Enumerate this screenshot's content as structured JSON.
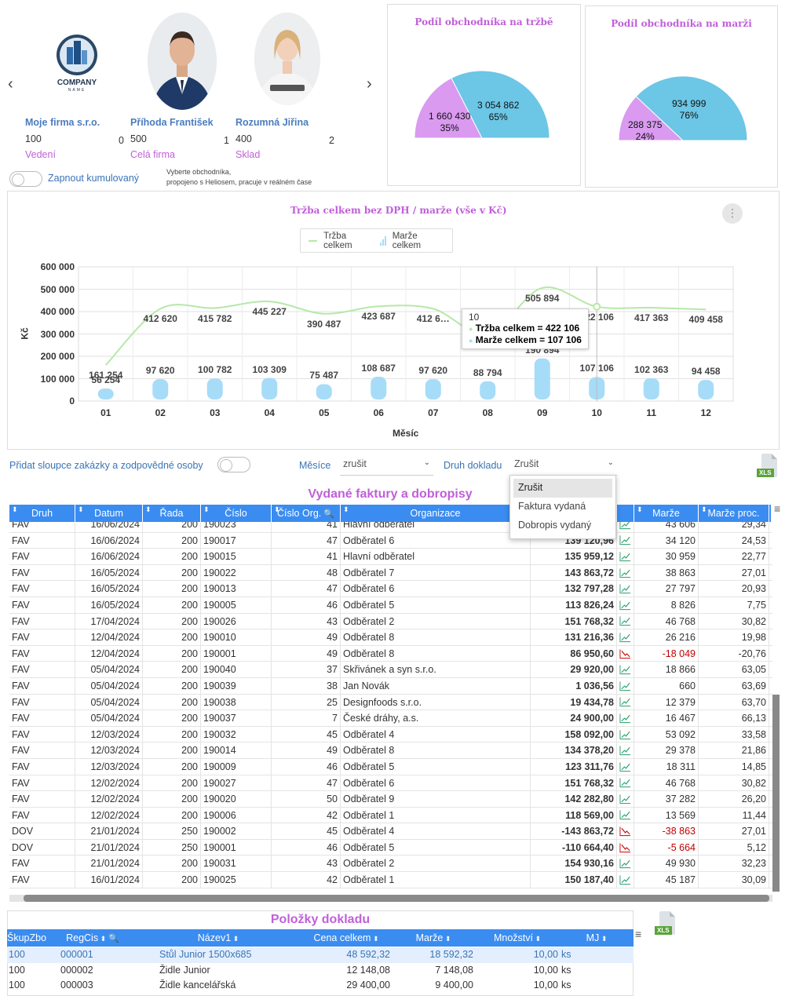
{
  "carousel": {
    "prev": "‹",
    "next": "›",
    "people": [
      {
        "name": "Moje firma s.r.o.",
        "number": "100",
        "count": "0",
        "dept": "Vedení",
        "logo_text": "COMPANY",
        "logo_sub": "NAME"
      },
      {
        "name": "Příhoda František",
        "number": "500",
        "count": "1",
        "dept": "Celá firma"
      },
      {
        "name": "Rozumná Jiřina",
        "number": "400",
        "count": "2",
        "dept": "Sklad"
      }
    ],
    "cumulative_label": "Zapnout kumulovaný",
    "hint_line1": "Vyberte obchodníka,",
    "hint_line2": "propojeno s Heliosem, pracuje v reálném čase"
  },
  "pies": [
    {
      "title": "Podíl obchodníka na tržbě",
      "slices": [
        {
          "value": "1 660 430",
          "pct": 35,
          "pct_label": "35%",
          "color": "#d99af0"
        },
        {
          "value": "3 054 862",
          "pct": 65,
          "pct_label": "65%",
          "color": "#6cc6e6"
        }
      ]
    },
    {
      "title": "Podíl obchodníka na marži",
      "slices": [
        {
          "value": "288 375",
          "pct": 24,
          "pct_label": "24%",
          "color": "#d99af0"
        },
        {
          "value": "934 999",
          "pct": 76,
          "pct_label": "76%",
          "color": "#6cc6e6"
        }
      ]
    }
  ],
  "chart_data": {
    "type": "line",
    "title": "Tržba celkem bez DPH / marže (vše v Kč)",
    "xlabel": "Měsíc",
    "ylabel": "Kč",
    "ylim": [
      0,
      600000
    ],
    "yticks": [
      "0",
      "100 000",
      "200 000",
      "300 000",
      "400 000",
      "500 000",
      "600 000"
    ],
    "categories": [
      "01",
      "02",
      "03",
      "04",
      "05",
      "06",
      "07",
      "08",
      "09",
      "10",
      "11",
      "12"
    ],
    "series": [
      {
        "name": "Tržba celkem",
        "kind": "line",
        "color": "#b6e8a8",
        "values": [
          161254,
          412620,
          415782,
          445227,
          390487,
          423687,
          412620,
          298794,
          505894,
          422106,
          417363,
          409458
        ],
        "labels": [
          "161 254",
          "412 620",
          "415 782",
          "445 227",
          "390 487",
          "423 687",
          "412 6…",
          "298 794",
          "505 894",
          "422 106",
          "417 363",
          "409 458"
        ]
      },
      {
        "name": "Marže celkem",
        "kind": "bar",
        "color": "#a6dcf8",
        "values": [
          56254,
          97620,
          100782,
          103309,
          75487,
          108687,
          97620,
          88794,
          190894,
          107106,
          102363,
          94458
        ],
        "labels": [
          "56 254",
          "97 620",
          "100 782",
          "103 309",
          "75 487",
          "108 687",
          "97 620",
          "88 794",
          "190 894",
          "107 106",
          "102 363",
          "94 458"
        ]
      }
    ],
    "legend": "top-center",
    "tooltip": {
      "header": "10",
      "line1": "Tržba celkem = 422 106",
      "line2": "Marže celkem = 107 106"
    }
  },
  "filters": {
    "add_columns_label": "Přidat sloupce zakázky a zodpovědné osoby",
    "months_label": "Měsíce",
    "months_value": "zrušit",
    "doctype_label": "Druh dokladu",
    "doctype_value": "Zrušit",
    "doctype_options": [
      "Zrušit",
      "Faktura vydaná",
      "Dobropis vydaný"
    ],
    "xls": "XLS"
  },
  "invoices": {
    "title": "Vydané faktury a dobropisy",
    "columns": [
      "Druh",
      "Datum",
      "Řada",
      "Číslo",
      "Číslo Org.",
      "Organizace",
      "",
      "",
      "Marže",
      "Marže proc."
    ],
    "rows": [
      [
        "FAV",
        "16/06/2024",
        "200",
        "190023",
        "41",
        "Hlavní odběratel",
        "",
        "up",
        "43 606",
        "29,34"
      ],
      [
        "FAV",
        "16/06/2024",
        "200",
        "190017",
        "47",
        "Odběratel 6",
        "139 120,96",
        "up",
        "34 120",
        "24,53"
      ],
      [
        "FAV",
        "16/06/2024",
        "200",
        "190015",
        "41",
        "Hlavní odběratel",
        "135 959,12",
        "up",
        "30 959",
        "22,77"
      ],
      [
        "FAV",
        "16/05/2024",
        "200",
        "190022",
        "48",
        "Odběratel 7",
        "143 863,72",
        "up",
        "38 863",
        "27,01"
      ],
      [
        "FAV",
        "16/05/2024",
        "200",
        "190013",
        "47",
        "Odběratel 6",
        "132 797,28",
        "up",
        "27 797",
        "20,93"
      ],
      [
        "FAV",
        "16/05/2024",
        "200",
        "190005",
        "46",
        "Odběratel 5",
        "113 826,24",
        "up",
        "8 826",
        "7,75"
      ],
      [
        "FAV",
        "17/04/2024",
        "200",
        "190026",
        "43",
        "Odběratel 2",
        "151 768,32",
        "up",
        "46 768",
        "30,82"
      ],
      [
        "FAV",
        "12/04/2024",
        "200",
        "190010",
        "49",
        "Odběratel 8",
        "131 216,36",
        "up",
        "26 216",
        "19,98"
      ],
      [
        "FAV",
        "12/04/2024",
        "200",
        "190001",
        "49",
        "Odběratel 8",
        "86 950,60",
        "down",
        "-18 049",
        "-20,76"
      ],
      [
        "FAV",
        "05/04/2024",
        "200",
        "190040",
        "37",
        "Skřivánek a syn s.r.o.",
        "29 920,00",
        "up",
        "18 866",
        "63,05"
      ],
      [
        "FAV",
        "05/04/2024",
        "200",
        "190039",
        "38",
        "Jan Novák",
        "1 036,56",
        "up",
        "660",
        "63,69"
      ],
      [
        "FAV",
        "05/04/2024",
        "200",
        "190038",
        "25",
        "Designfoods s.r.o.",
        "19 434,78",
        "up",
        "12 379",
        "63,70"
      ],
      [
        "FAV",
        "05/04/2024",
        "200",
        "190037",
        "7",
        "České dráhy, a.s.",
        "24 900,00",
        "up",
        "16 467",
        "66,13"
      ],
      [
        "FAV",
        "12/03/2024",
        "200",
        "190032",
        "45",
        "Odběratel 4",
        "158 092,00",
        "up",
        "53 092",
        "33,58"
      ],
      [
        "FAV",
        "12/03/2024",
        "200",
        "190014",
        "49",
        "Odběratel 8",
        "134 378,20",
        "up",
        "29 378",
        "21,86"
      ],
      [
        "FAV",
        "12/03/2024",
        "200",
        "190009",
        "46",
        "Odběratel 5",
        "123 311,76",
        "up",
        "18 311",
        "14,85"
      ],
      [
        "FAV",
        "12/02/2024",
        "200",
        "190027",
        "47",
        "Odběratel 6",
        "151 768,32",
        "up",
        "46 768",
        "30,82"
      ],
      [
        "FAV",
        "12/02/2024",
        "200",
        "190020",
        "50",
        "Odběratel 9",
        "142 282,80",
        "up",
        "37 282",
        "26,20"
      ],
      [
        "FAV",
        "12/02/2024",
        "200",
        "190006",
        "42",
        "Odběratel 1",
        "118 569,00",
        "up",
        "13 569",
        "11,44"
      ],
      [
        "DOV",
        "21/01/2024",
        "250",
        "190002",
        "45",
        "Odběratel 4",
        "-143 863,72",
        "down",
        "-38 863",
        "27,01"
      ],
      [
        "DOV",
        "21/01/2024",
        "250",
        "190001",
        "46",
        "Odběratel 5",
        "-110 664,40",
        "down",
        "-5 664",
        "5,12"
      ],
      [
        "FAV",
        "21/01/2024",
        "200",
        "190031",
        "43",
        "Odběratel 2",
        "154 930,16",
        "up",
        "49 930",
        "32,23"
      ],
      [
        "FAV",
        "16/01/2024",
        "200",
        "190025",
        "42",
        "Odběratel 1",
        "150 187,40",
        "up",
        "45 187",
        "30,09"
      ]
    ]
  },
  "items": {
    "title": "Položky dokladu",
    "columns": [
      "ŠkupZbo",
      "RegCis",
      "Název1",
      "Cena celkem",
      "Marže",
      "Množství",
      "MJ"
    ],
    "rows": [
      [
        "100",
        "000001",
        "Stůl Junior 1500x685",
        "48 592,32",
        "18 592,32",
        "10,00",
        "ks"
      ],
      [
        "100",
        "000002",
        "Židle Junior",
        "12 148,08",
        "7 148,08",
        "10,00",
        "ks"
      ],
      [
        "100",
        "000003",
        "Židle kancelářská",
        "29 400,00",
        "9 400,00",
        "10,00",
        "ks"
      ]
    ],
    "xls": "XLS"
  }
}
